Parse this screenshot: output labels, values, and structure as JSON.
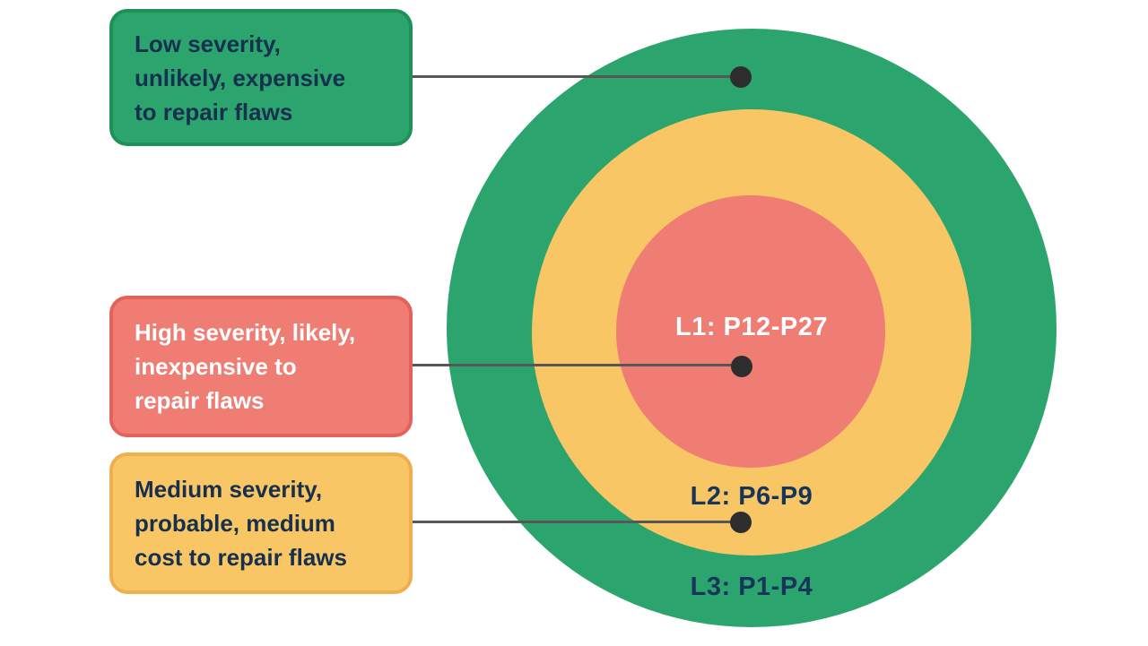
{
  "diagram": {
    "background": "#ffffff",
    "connector": {
      "line_color": "#575757",
      "dot_color": "#2d2d2d"
    },
    "rings": [
      {
        "id": "L1",
        "label": "L1: P12-P27",
        "fill": "#EF7D74",
        "label_color": "#ffffff"
      },
      {
        "id": "L2",
        "label": "L2: P6-P9",
        "fill": "#F8C664",
        "label_color": "#17355A"
      },
      {
        "id": "L3",
        "label": "L3: P1-P4",
        "fill": "#2BA56D",
        "label_color": "#17355A"
      }
    ],
    "callouts": [
      {
        "target": "L3",
        "fill": "#2BA56D",
        "border": "#1F9158",
        "text_color": "#16304E",
        "lines": [
          "Low severity,",
          "unlikely, expensive",
          "to repair flaws"
        ]
      },
      {
        "target": "L1",
        "fill": "#EF7D74",
        "border": "#E4625A",
        "text_color": "#FFFFFF",
        "lines": [
          "High severity, likely,",
          "inexpensive to",
          "repair flaws"
        ]
      },
      {
        "target": "L2",
        "fill": "#F8C664",
        "border": "#EFAF4D",
        "text_color": "#16304E",
        "lines": [
          "Medium severity,",
          "probable, medium",
          "cost to repair flaws"
        ]
      }
    ]
  }
}
